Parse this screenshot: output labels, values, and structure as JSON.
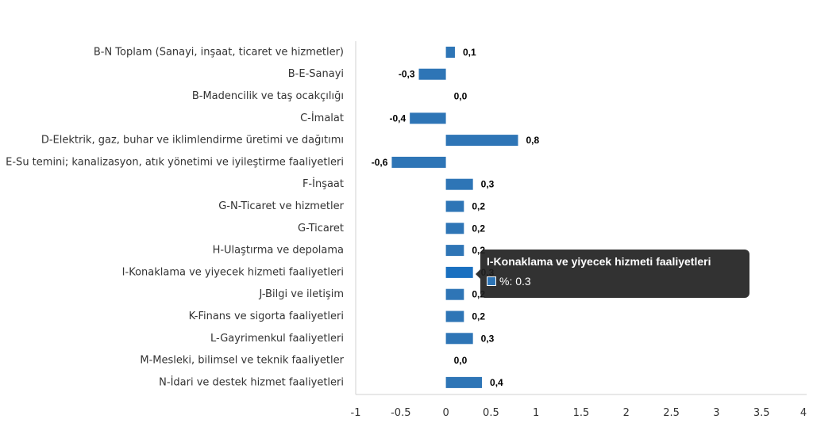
{
  "chart_data": {
    "type": "bar",
    "orientation": "horizontal",
    "categories": [
      "B-N Toplam (Sanayi, inşaat, ticaret ve hizmetler)",
      "B-E-Sanayi",
      "B-Madencilik ve taş ocakçılığı",
      "C-İmalat",
      "D-Elektrik, gaz, buhar ve iklimlendirme üretimi ve dağıtımı",
      "E-Su temini; kanalizasyon, atık yönetimi ve iyileştirme faaliyetleri",
      "F-İnşaat",
      "G-N-Ticaret ve hizmetler",
      "G-Ticaret",
      "H-Ulaştırma ve depolama",
      "I-Konaklama ve yiyecek hizmeti faaliyetleri",
      "J-Bilgi ve iletişim",
      "K-Finans ve sigorta faaliyetleri",
      "L-Gayrimenkul faaliyetleri",
      "M-Mesleki, bilimsel ve teknik faaliyetler",
      "N-İdari ve destek hizmet faaliyetleri"
    ],
    "values": [
      0.1,
      -0.3,
      0.0,
      -0.4,
      0.8,
      -0.6,
      0.3,
      0.2,
      0.2,
      0.2,
      0.3,
      0.2,
      0.2,
      0.3,
      0.0,
      0.4
    ],
    "data_labels": [
      "0,1",
      "-0,3",
      "0,0",
      "-0,4",
      "0,8",
      "-0,6",
      "0,3",
      "0,2",
      "0,2",
      "0,2",
      "0,3",
      "0,2",
      "0,2",
      "0,3",
      "0,0",
      "0,4"
    ],
    "xlim": [
      -1,
      4
    ],
    "xticks": [
      "-1",
      "-0.5",
      "0",
      "0.5",
      "1",
      "1.5",
      "2",
      "2.5",
      "3",
      "3.5",
      "4"
    ],
    "bar_color": "#2e75b6",
    "highlight_color": "#1a70c0",
    "highlight_index": 10,
    "grid": false
  },
  "tooltip": {
    "title": "I-Konaklama ve yiyecek hizmeti faaliyetleri",
    "value_text": "%: 0.3",
    "swatch_color": "#2e75b6"
  }
}
